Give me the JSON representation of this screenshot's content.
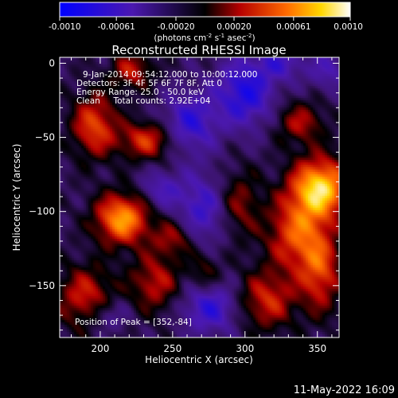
{
  "chart_data": {
    "type": "heatmap",
    "title": "Reconstructed RHESSI Image",
    "xlabel": "Heliocentric X (arcsec)",
    "ylabel": "Heliocentric Y (arcsec)",
    "xlim": [
      172,
      365
    ],
    "ylim": [
      -185,
      4
    ],
    "xticks": [
      200,
      250,
      300,
      350
    ],
    "yticks": [
      0,
      -50,
      -100,
      -150
    ],
    "colorbar": {
      "min": -0.001,
      "max": 0.001,
      "ticks": [
        "-0.0010",
        "-0.00061",
        "-0.00020",
        "0.00020",
        "0.00061",
        "0.0010"
      ],
      "tick_values": [
        -0.001,
        -0.00061,
        -0.0002,
        0.0002,
        0.00061,
        0.001
      ],
      "unit_main": "(photons cm",
      "unit_sup1": "-2",
      "unit_mid": " s",
      "unit_sup2": "-1",
      "unit_mid2": " asec",
      "unit_sup3": "-2",
      "unit_end": ")"
    },
    "annotations": [
      "9-Jan-2014 09:54:12.000 to 10:00:12.000",
      "Detectors: 3F 4F 5F 6F 7F 8F, Att 0",
      "Energy Range: 25.0 - 50.0 keV",
      "Clean     Total counts: 2.92E+04"
    ],
    "peak_label": "Position of Peak = [352,-84]",
    "peak": [
      352,
      -84
    ],
    "sources": [
      {
        "x": 352,
        "y": -84,
        "amp": 1.0,
        "sx": 14,
        "sy": 14
      },
      {
        "x": 215,
        "y": -105,
        "amp": 0.85,
        "sx": 13,
        "sy": 12
      },
      {
        "x": 196,
        "y": -42,
        "amp": 0.6,
        "sx": 11,
        "sy": 15
      },
      {
        "x": 232,
        "y": -52,
        "amp": 0.55,
        "sx": 13,
        "sy": 9
      },
      {
        "x": 222,
        "y": -5,
        "amp": 0.45,
        "sx": 10,
        "sy": 9
      },
      {
        "x": 190,
        "y": -158,
        "amp": 0.5,
        "sx": 14,
        "sy": 15
      },
      {
        "x": 238,
        "y": -148,
        "amp": 0.45,
        "sx": 12,
        "sy": 14
      },
      {
        "x": 252,
        "y": -118,
        "amp": 0.4,
        "sx": 11,
        "sy": 9
      },
      {
        "x": 335,
        "y": -115,
        "amp": 0.6,
        "sx": 14,
        "sy": 18
      },
      {
        "x": 315,
        "y": -160,
        "amp": 0.5,
        "sx": 14,
        "sy": 14
      },
      {
        "x": 352,
        "y": -140,
        "amp": 0.55,
        "sx": 10,
        "sy": 20
      },
      {
        "x": 338,
        "y": -40,
        "amp": 0.4,
        "sx": 12,
        "sy": 10
      },
      {
        "x": 296,
        "y": -95,
        "amp": 0.35,
        "sx": 10,
        "sy": 16
      },
      {
        "x": 272,
        "y": -140,
        "amp": 0.3,
        "sx": 8,
        "sy": 10
      },
      {
        "x": 262,
        "y": -40,
        "amp": -0.5,
        "sx": 13,
        "sy": 14
      },
      {
        "x": 300,
        "y": -20,
        "amp": -0.6,
        "sx": 14,
        "sy": 16
      },
      {
        "x": 270,
        "y": -100,
        "amp": -0.45,
        "sx": 12,
        "sy": 18
      },
      {
        "x": 276,
        "y": -165,
        "amp": -0.5,
        "sx": 14,
        "sy": 12
      },
      {
        "x": 242,
        "y": -85,
        "amp": -0.35,
        "sx": 10,
        "sy": 9
      },
      {
        "x": 205,
        "y": -170,
        "amp": -0.3,
        "sx": 10,
        "sy": 8
      },
      {
        "x": 325,
        "y": 0,
        "amp": -0.35,
        "sx": 12,
        "sy": 8
      },
      {
        "x": 358,
        "y": -5,
        "amp": -0.3,
        "sx": 10,
        "sy": 10
      }
    ]
  },
  "footer": {
    "timestamp": "11-May-2022 16:09"
  },
  "colors": {
    "background": "#000000",
    "text": "#ffffff"
  }
}
